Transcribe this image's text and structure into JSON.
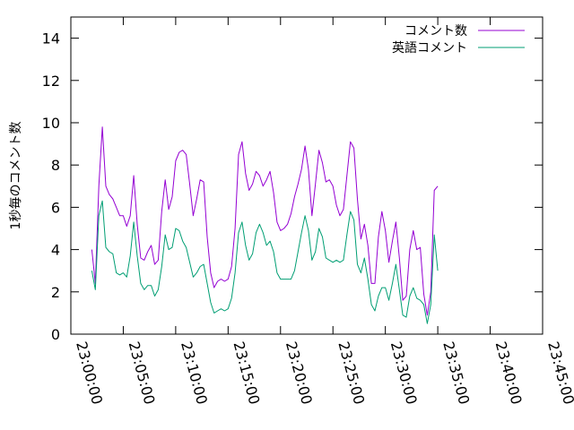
{
  "chart_data": {
    "type": "line",
    "title": "",
    "xlabel": "",
    "ylabel": "1秒毎のコメント数",
    "ylim": [
      0,
      15
    ],
    "y_ticks": [
      "0",
      "2",
      "4",
      "6",
      "8",
      "10",
      "12",
      "14"
    ],
    "x_range": [
      "23:00:00",
      "23:45:00"
    ],
    "x_ticks": [
      "23:00:00",
      "23:05:00",
      "23:10:00",
      "23:15:00",
      "23:20:00",
      "23:25:00",
      "23:30:00",
      "23:35:00",
      "23:40:00",
      "23:45:00"
    ],
    "grid": false,
    "legend_position": "top-right",
    "series": [
      {
        "name": "コメント数",
        "color": "#9400d3",
        "points": [
          [
            "23:02:00",
            4.0
          ],
          [
            "23:02:20",
            2.4
          ],
          [
            "23:02:40",
            7.0
          ],
          [
            "23:03:00",
            9.8
          ],
          [
            "23:03:20",
            7.0
          ],
          [
            "23:03:40",
            6.6
          ],
          [
            "23:04:00",
            6.4
          ],
          [
            "23:04:20",
            6.0
          ],
          [
            "23:04:40",
            5.6
          ],
          [
            "23:05:00",
            5.6
          ],
          [
            "23:05:20",
            5.1
          ],
          [
            "23:05:40",
            5.6
          ],
          [
            "23:06:00",
            7.5
          ],
          [
            "23:06:20",
            5.2
          ],
          [
            "23:06:40",
            3.6
          ],
          [
            "23:07:00",
            3.5
          ],
          [
            "23:07:20",
            3.9
          ],
          [
            "23:07:40",
            4.2
          ],
          [
            "23:08:00",
            3.3
          ],
          [
            "23:08:20",
            3.5
          ],
          [
            "23:08:40",
            5.8
          ],
          [
            "23:09:00",
            7.3
          ],
          [
            "23:09:20",
            5.9
          ],
          [
            "23:09:40",
            6.5
          ],
          [
            "23:10:00",
            8.2
          ],
          [
            "23:10:20",
            8.6
          ],
          [
            "23:10:40",
            8.7
          ],
          [
            "23:11:00",
            8.5
          ],
          [
            "23:11:20",
            7.1
          ],
          [
            "23:11:40",
            5.6
          ],
          [
            "23:12:00",
            6.4
          ],
          [
            "23:12:20",
            7.3
          ],
          [
            "23:12:40",
            7.2
          ],
          [
            "23:13:00",
            4.6
          ],
          [
            "23:13:20",
            2.9
          ],
          [
            "23:13:40",
            2.2
          ],
          [
            "23:14:00",
            2.5
          ],
          [
            "23:14:20",
            2.6
          ],
          [
            "23:14:40",
            2.5
          ],
          [
            "23:15:00",
            2.6
          ],
          [
            "23:15:20",
            3.2
          ],
          [
            "23:15:40",
            5.0
          ],
          [
            "23:16:00",
            8.5
          ],
          [
            "23:16:20",
            9.1
          ],
          [
            "23:16:40",
            7.6
          ],
          [
            "23:17:00",
            6.8
          ],
          [
            "23:17:20",
            7.1
          ],
          [
            "23:17:40",
            7.7
          ],
          [
            "23:18:00",
            7.5
          ],
          [
            "23:18:20",
            7.0
          ],
          [
            "23:18:40",
            7.3
          ],
          [
            "23:19:00",
            7.7
          ],
          [
            "23:19:20",
            6.7
          ],
          [
            "23:19:40",
            5.3
          ],
          [
            "23:20:00",
            4.9
          ],
          [
            "23:20:20",
            5.0
          ],
          [
            "23:20:40",
            5.2
          ],
          [
            "23:21:00",
            5.7
          ],
          [
            "23:21:20",
            6.5
          ],
          [
            "23:21:40",
            7.1
          ],
          [
            "23:22:00",
            7.8
          ],
          [
            "23:22:20",
            8.9
          ],
          [
            "23:22:40",
            7.8
          ],
          [
            "23:23:00",
            5.6
          ],
          [
            "23:23:20",
            7.1
          ],
          [
            "23:23:40",
            8.7
          ],
          [
            "23:24:00",
            8.1
          ],
          [
            "23:24:20",
            7.2
          ],
          [
            "23:24:40",
            7.3
          ],
          [
            "23:25:00",
            7.0
          ],
          [
            "23:25:20",
            6.1
          ],
          [
            "23:25:40",
            5.6
          ],
          [
            "23:26:00",
            5.9
          ],
          [
            "23:26:20",
            7.5
          ],
          [
            "23:26:40",
            9.1
          ],
          [
            "23:27:00",
            8.8
          ],
          [
            "23:27:20",
            6.4
          ],
          [
            "23:27:40",
            4.5
          ],
          [
            "23:28:00",
            5.2
          ],
          [
            "23:28:20",
            4.2
          ],
          [
            "23:28:40",
            2.4
          ],
          [
            "23:29:00",
            2.4
          ],
          [
            "23:29:20",
            4.6
          ],
          [
            "23:29:40",
            5.8
          ],
          [
            "23:30:00",
            4.9
          ],
          [
            "23:30:20",
            3.4
          ],
          [
            "23:30:40",
            4.4
          ],
          [
            "23:31:00",
            5.3
          ],
          [
            "23:31:20",
            3.6
          ],
          [
            "23:31:40",
            1.6
          ],
          [
            "23:32:00",
            1.8
          ],
          [
            "23:32:20",
            4.0
          ],
          [
            "23:32:40",
            4.9
          ],
          [
            "23:33:00",
            4.0
          ],
          [
            "23:33:20",
            4.1
          ],
          [
            "23:33:40",
            1.9
          ],
          [
            "23:34:00",
            0.9
          ],
          [
            "23:34:20",
            2.0
          ],
          [
            "23:34:40",
            6.8
          ],
          [
            "23:35:00",
            7.0
          ]
        ]
      },
      {
        "name": "英語コメント",
        "color": "#009e73",
        "points": [
          [
            "23:02:00",
            3.0
          ],
          [
            "23:02:20",
            2.1
          ],
          [
            "23:02:40",
            5.6
          ],
          [
            "23:03:00",
            6.3
          ],
          [
            "23:03:20",
            4.1
          ],
          [
            "23:03:40",
            3.9
          ],
          [
            "23:04:00",
            3.8
          ],
          [
            "23:04:20",
            2.9
          ],
          [
            "23:04:40",
            2.8
          ],
          [
            "23:05:00",
            2.9
          ],
          [
            "23:05:20",
            2.7
          ],
          [
            "23:05:40",
            3.7
          ],
          [
            "23:06:00",
            5.3
          ],
          [
            "23:06:20",
            3.7
          ],
          [
            "23:06:40",
            2.4
          ],
          [
            "23:07:00",
            2.1
          ],
          [
            "23:07:20",
            2.3
          ],
          [
            "23:07:40",
            2.3
          ],
          [
            "23:08:00",
            1.8
          ],
          [
            "23:08:20",
            2.1
          ],
          [
            "23:08:40",
            3.2
          ],
          [
            "23:09:00",
            4.7
          ],
          [
            "23:09:20",
            4.0
          ],
          [
            "23:09:40",
            4.1
          ],
          [
            "23:10:00",
            5.0
          ],
          [
            "23:10:20",
            4.9
          ],
          [
            "23:10:40",
            4.4
          ],
          [
            "23:11:00",
            4.1
          ],
          [
            "23:11:20",
            3.4
          ],
          [
            "23:11:40",
            2.7
          ],
          [
            "23:12:00",
            2.9
          ],
          [
            "23:12:20",
            3.2
          ],
          [
            "23:12:40",
            3.3
          ],
          [
            "23:13:00",
            2.4
          ],
          [
            "23:13:20",
            1.5
          ],
          [
            "23:13:40",
            1.0
          ],
          [
            "23:14:00",
            1.1
          ],
          [
            "23:14:20",
            1.2
          ],
          [
            "23:14:40",
            1.1
          ],
          [
            "23:15:00",
            1.2
          ],
          [
            "23:15:20",
            1.7
          ],
          [
            "23:15:40",
            2.9
          ],
          [
            "23:16:00",
            4.8
          ],
          [
            "23:16:20",
            5.3
          ],
          [
            "23:16:40",
            4.2
          ],
          [
            "23:17:00",
            3.5
          ],
          [
            "23:17:20",
            3.8
          ],
          [
            "23:17:40",
            4.8
          ],
          [
            "23:18:00",
            5.2
          ],
          [
            "23:18:20",
            4.8
          ],
          [
            "23:18:40",
            4.2
          ],
          [
            "23:19:00",
            4.4
          ],
          [
            "23:19:20",
            3.9
          ],
          [
            "23:19:40",
            2.9
          ],
          [
            "23:20:00",
            2.6
          ],
          [
            "23:20:20",
            2.6
          ],
          [
            "23:20:40",
            2.6
          ],
          [
            "23:21:00",
            2.6
          ],
          [
            "23:21:20",
            3.0
          ],
          [
            "23:21:40",
            3.9
          ],
          [
            "23:22:00",
            4.8
          ],
          [
            "23:22:20",
            5.6
          ],
          [
            "23:22:40",
            4.9
          ],
          [
            "23:23:00",
            3.5
          ],
          [
            "23:23:20",
            3.9
          ],
          [
            "23:23:40",
            5.0
          ],
          [
            "23:24:00",
            4.6
          ],
          [
            "23:24:20",
            3.6
          ],
          [
            "23:24:40",
            3.5
          ],
          [
            "23:25:00",
            3.4
          ],
          [
            "23:25:20",
            3.5
          ],
          [
            "23:25:40",
            3.4
          ],
          [
            "23:26:00",
            3.5
          ],
          [
            "23:26:20",
            4.7
          ],
          [
            "23:26:40",
            5.8
          ],
          [
            "23:27:00",
            5.4
          ],
          [
            "23:27:20",
            3.3
          ],
          [
            "23:27:40",
            2.9
          ],
          [
            "23:28:00",
            3.6
          ],
          [
            "23:28:20",
            2.6
          ],
          [
            "23:28:40",
            1.4
          ],
          [
            "23:29:00",
            1.1
          ],
          [
            "23:29:20",
            1.8
          ],
          [
            "23:29:40",
            2.2
          ],
          [
            "23:30:00",
            2.2
          ],
          [
            "23:30:20",
            1.6
          ],
          [
            "23:30:40",
            2.4
          ],
          [
            "23:31:00",
            3.3
          ],
          [
            "23:31:20",
            2.1
          ],
          [
            "23:31:40",
            0.9
          ],
          [
            "23:32:00",
            0.8
          ],
          [
            "23:32:20",
            1.8
          ],
          [
            "23:32:40",
            2.2
          ],
          [
            "23:33:00",
            1.7
          ],
          [
            "23:33:20",
            1.6
          ],
          [
            "23:33:40",
            1.4
          ],
          [
            "23:34:00",
            0.5
          ],
          [
            "23:34:20",
            1.4
          ],
          [
            "23:34:40",
            4.7
          ],
          [
            "23:35:00",
            3.0
          ]
        ]
      }
    ]
  }
}
